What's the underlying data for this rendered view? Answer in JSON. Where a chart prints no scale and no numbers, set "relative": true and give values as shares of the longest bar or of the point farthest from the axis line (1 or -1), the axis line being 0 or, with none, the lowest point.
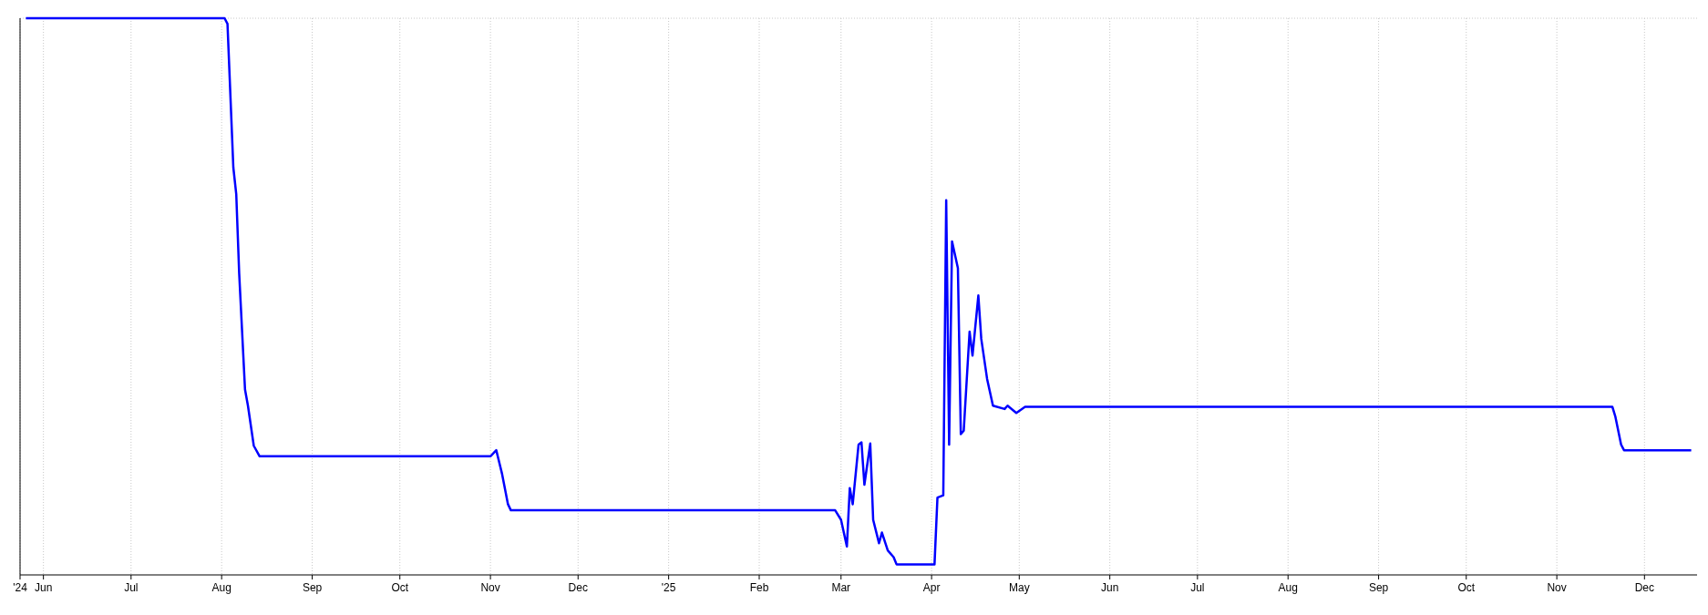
{
  "chart_data": {
    "type": "line",
    "relative": true,
    "grid": "x",
    "xlim": [
      "2024-05-24",
      "2025-12-19"
    ],
    "xticks": [
      {
        "value": "2024-05-24",
        "label": "'24"
      },
      {
        "value": "2024-06-01",
        "label": "Jun"
      },
      {
        "value": "2024-07-01",
        "label": "Jul"
      },
      {
        "value": "2024-08-01",
        "label": "Aug"
      },
      {
        "value": "2024-09-01",
        "label": "Sep"
      },
      {
        "value": "2024-10-01",
        "label": "Oct"
      },
      {
        "value": "2024-11-01",
        "label": "Nov"
      },
      {
        "value": "2024-12-01",
        "label": "Dec"
      },
      {
        "value": "2025-01-01",
        "label": "'25"
      },
      {
        "value": "2025-02-01",
        "label": "Feb"
      },
      {
        "value": "2025-03-01",
        "label": "Mar"
      },
      {
        "value": "2025-04-01",
        "label": "Apr"
      },
      {
        "value": "2025-05-01",
        "label": "May"
      },
      {
        "value": "2025-06-01",
        "label": "Jun"
      },
      {
        "value": "2025-07-01",
        "label": "Jul"
      },
      {
        "value": "2025-08-01",
        "label": "Aug"
      },
      {
        "value": "2025-09-01",
        "label": "Sep"
      },
      {
        "value": "2025-10-01",
        "label": "Oct"
      },
      {
        "value": "2025-11-01",
        "label": "Nov"
      },
      {
        "value": "2025-12-01",
        "label": "Dec"
      }
    ],
    "x": [
      "2024-05-26",
      "2024-08-02",
      "2024-08-03",
      "2024-08-05",
      "2024-08-06",
      "2024-08-07",
      "2024-08-09",
      "2024-08-10",
      "2024-08-12",
      "2024-08-14",
      "2024-11-01",
      "2024-11-03",
      "2024-11-05",
      "2024-11-07",
      "2024-11-08",
      "2025-02-27",
      "2025-03-01",
      "2025-03-03",
      "2025-03-04",
      "2025-03-05",
      "2025-03-07",
      "2025-03-08",
      "2025-03-09",
      "2025-03-11",
      "2025-03-12",
      "2025-03-14",
      "2025-03-15",
      "2025-03-17",
      "2025-03-19",
      "2025-03-20",
      "2025-04-02",
      "2025-04-03",
      "2025-04-05",
      "2025-04-06",
      "2025-04-07",
      "2025-04-08",
      "2025-04-10",
      "2025-04-11",
      "2025-04-12",
      "2025-04-14",
      "2025-04-15",
      "2025-04-17",
      "2025-04-18",
      "2025-04-20",
      "2025-04-22",
      "2025-04-26",
      "2025-04-27",
      "2025-04-30",
      "2025-05-03",
      "2025-11-20",
      "2025-11-21",
      "2025-11-23",
      "2025-11-24",
      "2025-12-17"
    ],
    "series": [
      {
        "color": "#0000ff",
        "values": [
          1,
          1,
          0.99,
          0.732,
          0.684,
          0.542,
          0.333,
          0.304,
          0.232,
          0.213,
          0.213,
          0.224,
          0.181,
          0.127,
          0.116,
          0.116,
          0.099,
          0.051,
          0.156,
          0.127,
          0.234,
          0.238,
          0.162,
          0.236,
          0.099,
          0.057,
          0.076,
          0.044,
          0.032,
          0.019,
          0.019,
          0.139,
          0.143,
          0.673,
          0.234,
          0.599,
          0.551,
          0.253,
          0.259,
          0.437,
          0.394,
          0.502,
          0.424,
          0.352,
          0.304,
          0.298,
          0.304,
          0.291,
          0.302,
          0.302,
          0.285,
          0.234,
          0.224,
          0.224
        ]
      }
    ]
  }
}
